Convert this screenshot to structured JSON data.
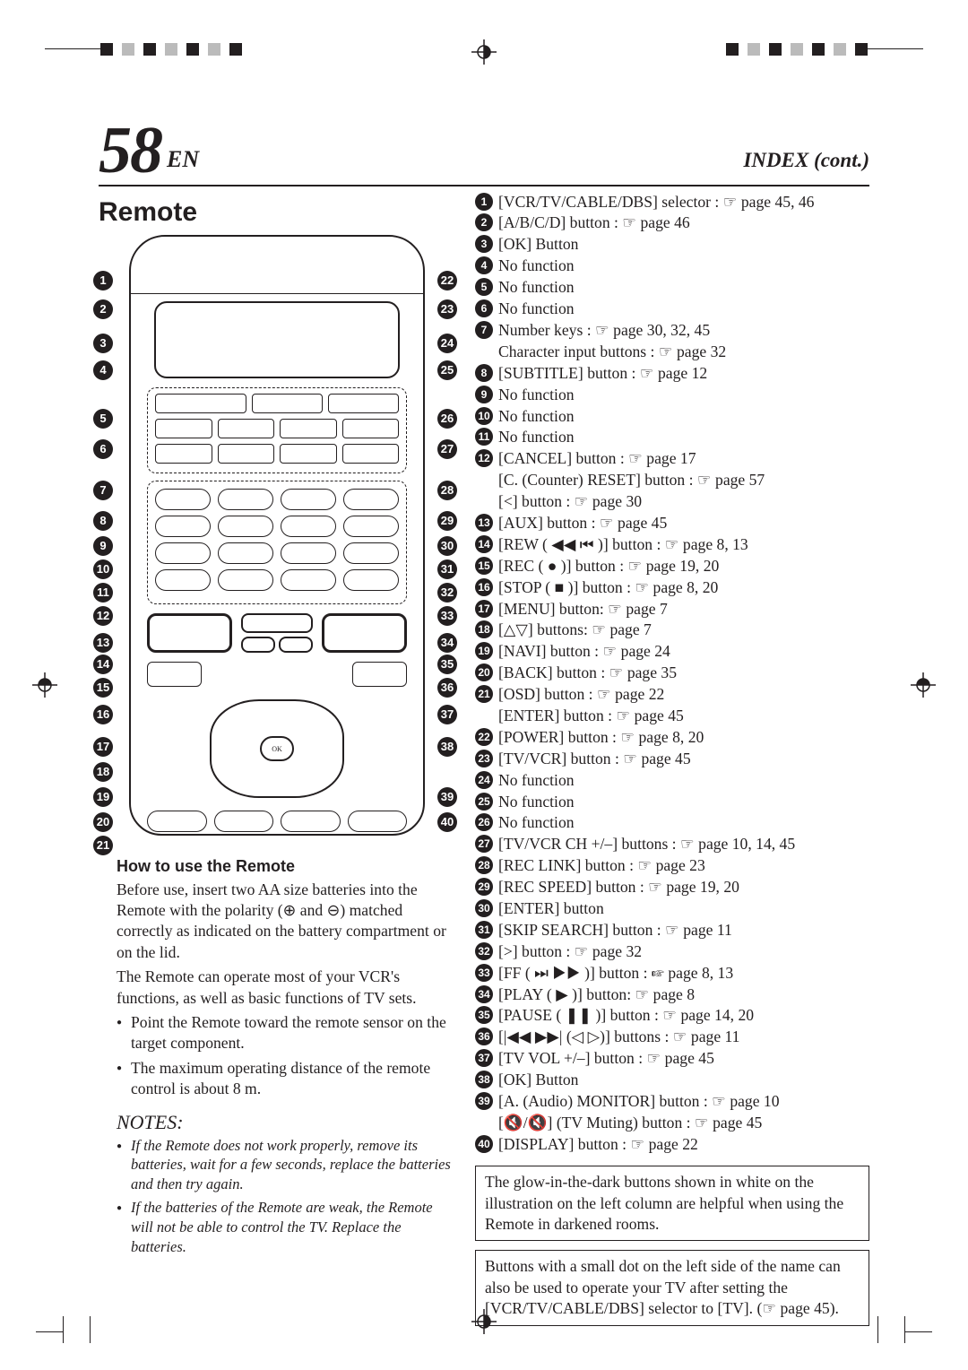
{
  "page": {
    "number": "58",
    "lang_suffix": "EN",
    "index_title": "INDEX (cont.)"
  },
  "left": {
    "section_title": "Remote",
    "how_title": "How to use the Remote",
    "how_p1": "Before use, insert two AA size batteries into the Remote with the polarity (⊕ and ⊖) matched correctly as indicated on the battery compartment or on the lid.",
    "how_p2": "The Remote can operate most of your VCR's functions, as well as basic functions of TV sets.",
    "how_b1": "Point the Remote toward the remote sensor on the target component.",
    "how_b2": "The maximum operating distance of the remote control is about 8 m.",
    "notes_title": "NOTES:",
    "note1": "If the Remote does not work properly, remove its batteries, wait for a few seconds, replace the batteries and then try again.",
    "note2": "If the batteries of the Remote are weak, the Remote will not be able to control the TV. Replace the batteries."
  },
  "refs": [
    {
      "n": "1",
      "text": "[VCR/TV/CABLE/DBS] selector : ☞ page 45, 46"
    },
    {
      "n": "2",
      "text": "[A/B/C/D] button : ☞ page 46"
    },
    {
      "n": "3",
      "text": "[OK] Button"
    },
    {
      "n": "4",
      "text": "No function"
    },
    {
      "n": "5",
      "text": "No function"
    },
    {
      "n": "6",
      "text": "No function"
    },
    {
      "n": "7",
      "text": "Number keys : ☞ page 30, 32, 45"
    },
    {
      "sub": true,
      "text": "Character input buttons : ☞ page 32"
    },
    {
      "n": "8",
      "text": "[SUBTITLE] button : ☞ page 12"
    },
    {
      "n": "9",
      "text": "No function"
    },
    {
      "n": "10",
      "text": "No function"
    },
    {
      "n": "11",
      "text": "No function"
    },
    {
      "n": "12",
      "text": "[CANCEL] button : ☞ page 17"
    },
    {
      "sub": true,
      "text": "[C. (Counter) RESET] button : ☞ page 57"
    },
    {
      "sub": true,
      "text": "[<] button : ☞ page 30"
    },
    {
      "n": "13",
      "text": "[AUX] button : ☞ page 45"
    },
    {
      "n": "14",
      "text": "[REW ( ◀◀ ⏮ )] button : ☞ page 8, 13"
    },
    {
      "n": "15",
      "text": "[REC ( ● )] button : ☞ page 19, 20"
    },
    {
      "n": "16",
      "text": "[STOP ( ■ )] button : ☞ page 8, 20"
    },
    {
      "n": "17",
      "text": "[MENU] button: ☞ page 7"
    },
    {
      "n": "18",
      "text": "[△▽] buttons: ☞ page 7"
    },
    {
      "n": "19",
      "text": "[NAVI] button : ☞ page 24"
    },
    {
      "n": "20",
      "text": "[BACK] button : ☞ page 35"
    },
    {
      "n": "21",
      "text": "[OSD] button : ☞ page 22"
    },
    {
      "sub": true,
      "text": "[ENTER] button : ☞ page 45"
    },
    {
      "n": "22",
      "text": "[POWER] button : ☞ page 8, 20"
    },
    {
      "n": "23",
      "text": "[TV/VCR] button : ☞ page 45"
    },
    {
      "n": "24",
      "text": "No function"
    },
    {
      "n": "25",
      "text": "No function"
    },
    {
      "n": "26",
      "text": "No function"
    },
    {
      "n": "27",
      "text": "[TV/VCR CH +/–] buttons : ☞ page 10, 14, 45"
    },
    {
      "n": "28",
      "text": "[REC LINK] button : ☞ page 23"
    },
    {
      "n": "29",
      "text": "[REC SPEED] button : ☞ page 19, 20"
    },
    {
      "n": "30",
      "text": "[ENTER] button"
    },
    {
      "n": "31",
      "text": "[SKIP SEARCH] button : ☞ page 11"
    },
    {
      "n": "32",
      "text": "[>] button : ☞ page 32"
    },
    {
      "n": "33",
      "text": "[FF ( ⏭ ▶▶ )] button : ☞ page 8, 13"
    },
    {
      "n": "34",
      "text": "[PLAY ( ▶ )] button: ☞ page 8"
    },
    {
      "n": "35",
      "text": "[PAUSE ( ❚❚ )] button : ☞ page 14, 20"
    },
    {
      "n": "36",
      "text": "[|◀◀ ▶▶| (◁ ▷)] buttons : ☞ page 11"
    },
    {
      "n": "37",
      "text": "[TV VOL +/–] button : ☞ page 45"
    },
    {
      "n": "38",
      "text": "[OK] Button"
    },
    {
      "n": "39",
      "text": "[A. (Audio) MONITOR] button : ☞ page 10"
    },
    {
      "sub": true,
      "text": "[🔇/🔇] (TV Muting) button : ☞ page 45"
    },
    {
      "n": "40",
      "text": "[DISPLAY] button : ☞ page 22"
    }
  ],
  "box1": "The glow-in-the-dark buttons shown in white on the illustration on the left column are helpful when using the Remote in darkened rooms.",
  "box2": "Buttons with a small dot on the left side of the name can also be used to operate your TV after setting the [VCR/TV/CABLE/DBS] selector to [TV]. (☞ page 45).",
  "left_nums": [
    1,
    2,
    3,
    4,
    5,
    6,
    7,
    8,
    9,
    10,
    11,
    12,
    13,
    14,
    15,
    16,
    17,
    18,
    19,
    20,
    21
  ],
  "right_nums": [
    22,
    23,
    24,
    25,
    26,
    27,
    28,
    29,
    30,
    31,
    32,
    33,
    34,
    35,
    36,
    37,
    38,
    39,
    40
  ],
  "colors": {
    "fg": "#231f20",
    "bg": "#ffffff"
  }
}
